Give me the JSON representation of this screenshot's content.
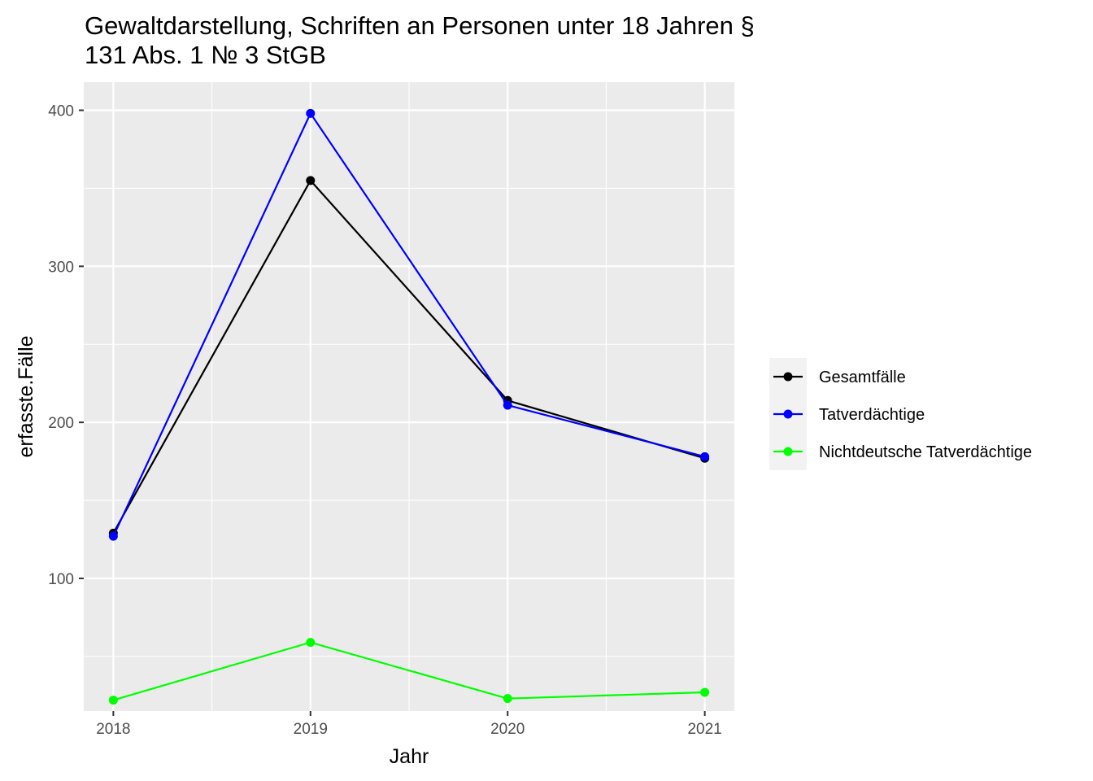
{
  "chart_data": {
    "type": "line",
    "title_lines": [
      "Gewaltdarstellung, Schriften an Personen unter 18 Jahren §",
      "131 Abs. 1 № 3 StGB"
    ],
    "xlabel": "Jahr",
    "ylabel": "erfasste.Fälle",
    "x": [
      2018,
      2019,
      2020,
      2021
    ],
    "x_tick_labels": [
      "2018",
      "2019",
      "2020",
      "2021"
    ],
    "xlim": [
      2017.85,
      2021.15
    ],
    "ylim": [
      15,
      418
    ],
    "y_ticks": [
      100,
      200,
      300,
      400
    ],
    "y_tick_labels": [
      "100",
      "200",
      "300",
      "400"
    ],
    "grid": true,
    "legend_position": "right",
    "series": [
      {
        "name": "Gesamtfälle",
        "color": "#000000",
        "values": [
          129,
          355,
          214,
          177
        ]
      },
      {
        "name": "Tatverdächtige",
        "color": "#0000ff",
        "values": [
          127,
          398,
          211,
          178
        ]
      },
      {
        "name": "Nichtdeutsche Tatverdächtige",
        "color": "#00ff00",
        "values": [
          22,
          59,
          23,
          27
        ]
      }
    ]
  }
}
